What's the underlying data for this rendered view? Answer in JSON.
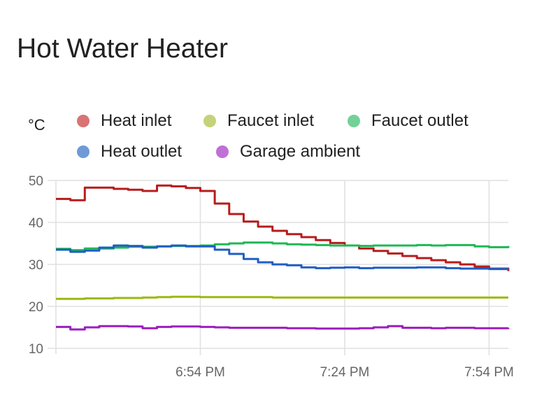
{
  "card": {
    "title": "Hot Water Heater"
  },
  "chart_data": {
    "type": "line",
    "step": true,
    "ylabel": "°C",
    "ylim": [
      10,
      50
    ],
    "yticks": [
      "50",
      "40",
      "30",
      "20",
      "10"
    ],
    "xtick_labels": [
      {
        "time": "18:54",
        "label": "6:54 PM"
      },
      {
        "time": "19:24",
        "label": "7:24 PM"
      },
      {
        "time": "19:54",
        "label": "7:54 PM"
      }
    ],
    "xlim": [
      "18:24",
      "19:58"
    ],
    "grid": true,
    "legend_position": "top",
    "x": [
      "18:24",
      "18:27",
      "18:30",
      "18:33",
      "18:36",
      "18:39",
      "18:42",
      "18:45",
      "18:48",
      "18:51",
      "18:54",
      "18:57",
      "19:00",
      "19:03",
      "19:06",
      "19:09",
      "19:12",
      "19:15",
      "19:18",
      "19:21",
      "19:24",
      "19:27",
      "19:30",
      "19:33",
      "19:36",
      "19:39",
      "19:42",
      "19:45",
      "19:48",
      "19:51",
      "19:54",
      "19:58"
    ],
    "series": [
      {
        "name": "Heat inlet",
        "color": "#b71c1c",
        "legend_color": "#d87474",
        "values": [
          45.6,
          45.3,
          48.3,
          48.3,
          48.0,
          47.8,
          47.5,
          48.8,
          48.6,
          48.2,
          47.5,
          44.5,
          42.0,
          40.2,
          39.0,
          38.0,
          37.2,
          36.5,
          35.8,
          35.1,
          34.5,
          33.8,
          33.2,
          32.6,
          32.0,
          31.5,
          31.0,
          30.5,
          30.0,
          29.5,
          29.0,
          28.4
        ]
      },
      {
        "name": "Faucet inlet",
        "color": "#9aba0e",
        "legend_color": "#c5d27a",
        "values": [
          21.8,
          21.8,
          21.9,
          21.9,
          22.0,
          22.0,
          22.1,
          22.2,
          22.3,
          22.3,
          22.2,
          22.2,
          22.2,
          22.2,
          22.2,
          22.1,
          22.1,
          22.1,
          22.1,
          22.1,
          22.1,
          22.1,
          22.1,
          22.1,
          22.1,
          22.1,
          22.1,
          22.1,
          22.1,
          22.1,
          22.1,
          22.1
        ]
      },
      {
        "name": "Faucet outlet",
        "color": "#1fb855",
        "legend_color": "#73d198",
        "values": [
          33.7,
          33.4,
          33.8,
          33.8,
          34.0,
          34.2,
          34.2,
          34.3,
          34.4,
          34.4,
          34.5,
          34.8,
          35.0,
          35.2,
          35.2,
          35.0,
          34.8,
          34.7,
          34.6,
          34.5,
          34.5,
          34.4,
          34.5,
          34.5,
          34.5,
          34.6,
          34.5,
          34.6,
          34.6,
          34.3,
          34.1,
          34.4
        ]
      },
      {
        "name": "Heat outlet",
        "color": "#1e5ec5",
        "legend_color": "#6f9ad6",
        "values": [
          33.5,
          33.0,
          33.3,
          34.0,
          34.5,
          34.4,
          34.0,
          34.3,
          34.5,
          34.3,
          34.3,
          33.5,
          32.5,
          31.3,
          30.5,
          30.0,
          29.8,
          29.3,
          29.1,
          29.2,
          29.3,
          29.1,
          29.2,
          29.2,
          29.2,
          29.3,
          29.3,
          29.1,
          29.0,
          29.0,
          28.9,
          29.0
        ]
      },
      {
        "name": "Garage ambient",
        "color": "#9b1ec0",
        "legend_color": "#c06fd6",
        "values": [
          15.1,
          14.5,
          15.0,
          15.3,
          15.3,
          15.2,
          14.8,
          15.1,
          15.2,
          15.2,
          15.1,
          15.0,
          14.9,
          14.9,
          14.9,
          14.9,
          14.8,
          14.8,
          14.7,
          14.7,
          14.7,
          14.8,
          15.0,
          15.3,
          14.9,
          14.9,
          14.8,
          14.9,
          14.9,
          14.8,
          14.8,
          14.9
        ]
      }
    ]
  }
}
